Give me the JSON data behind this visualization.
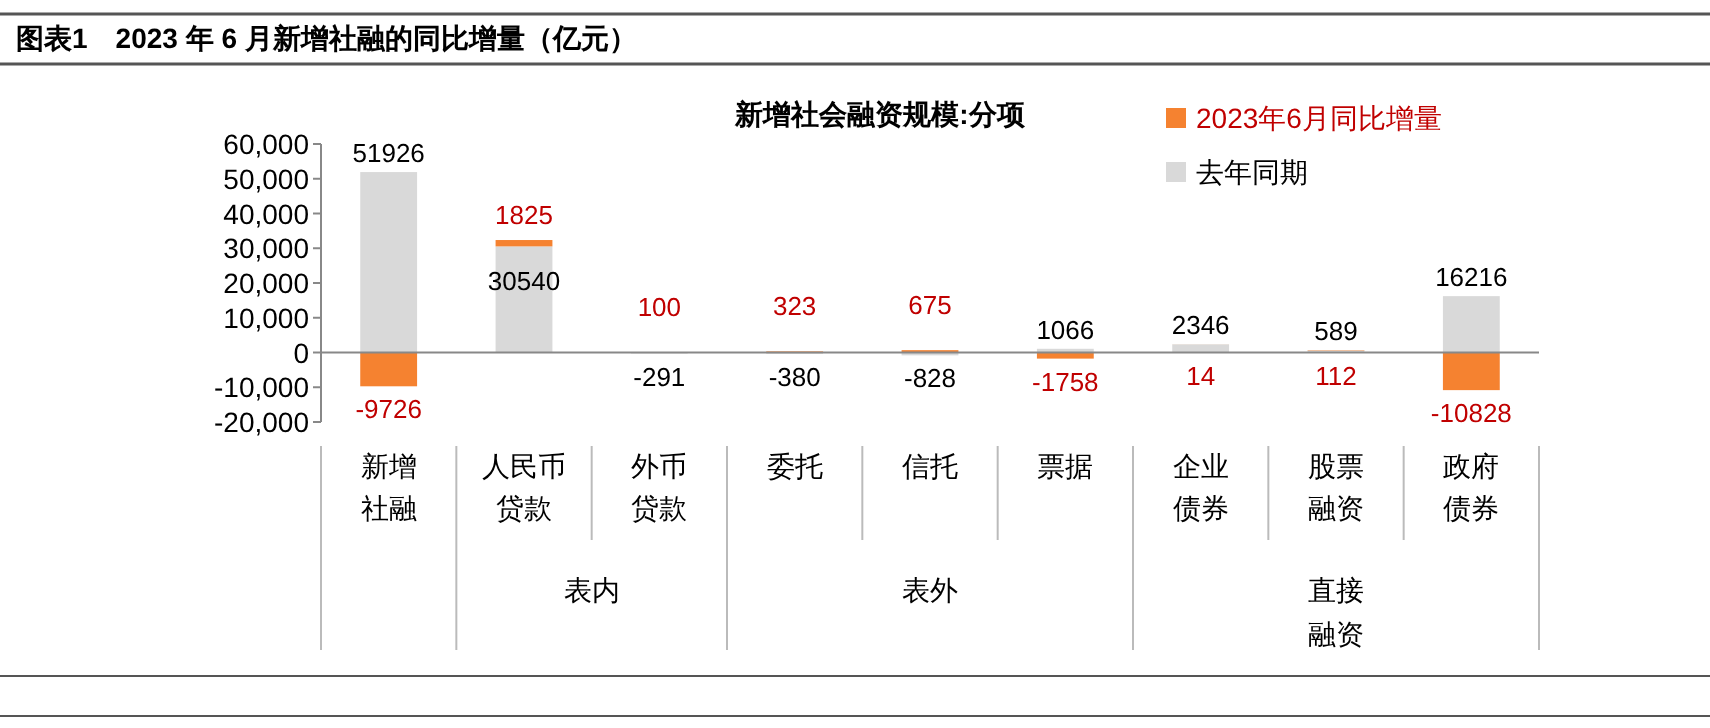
{
  "chart_data": {
    "type": "bar",
    "title": "图表1　2023 年 6 月新增社融的同比增量（亿元）",
    "subtitle": "新增社会融资规模:分项",
    "categories": [
      "新增社融",
      "人民币贷款",
      "外币贷款",
      "委托",
      "信托",
      "票据",
      "企业债券",
      "股票融资",
      "政府债券"
    ],
    "stacked": true,
    "series": [
      {
        "name": "去年同期",
        "color": "#d9d9d9",
        "values": [
          51926,
          30540,
          -291,
          -380,
          -828,
          1066,
          2346,
          589,
          16216
        ]
      },
      {
        "name": "2023年6月同比增量",
        "color": "#f58230",
        "values": [
          -9726,
          1825,
          100,
          323,
          675,
          -1758,
          14,
          112,
          -10828
        ]
      }
    ],
    "ylim": [
      -20000,
      60000
    ],
    "yticks": [
      {
        "value": -20000,
        "label": "-20,000"
      },
      {
        "value": -10000,
        "label": "-10,000"
      },
      0,
      {
        "value": 10000,
        "label": "10,000"
      },
      {
        "value": 20000,
        "label": "20,000"
      },
      {
        "value": 30000,
        "label": "30,000"
      },
      {
        "value": 40000,
        "label": "40,000"
      },
      {
        "value": 50000,
        "label": "50,000"
      },
      {
        "value": 60000,
        "label": "60,000"
      }
    ],
    "data_labels": true,
    "legend": "top right",
    "annotations": [
      "表内",
      "表外",
      "直接融资"
    ]
  }
}
